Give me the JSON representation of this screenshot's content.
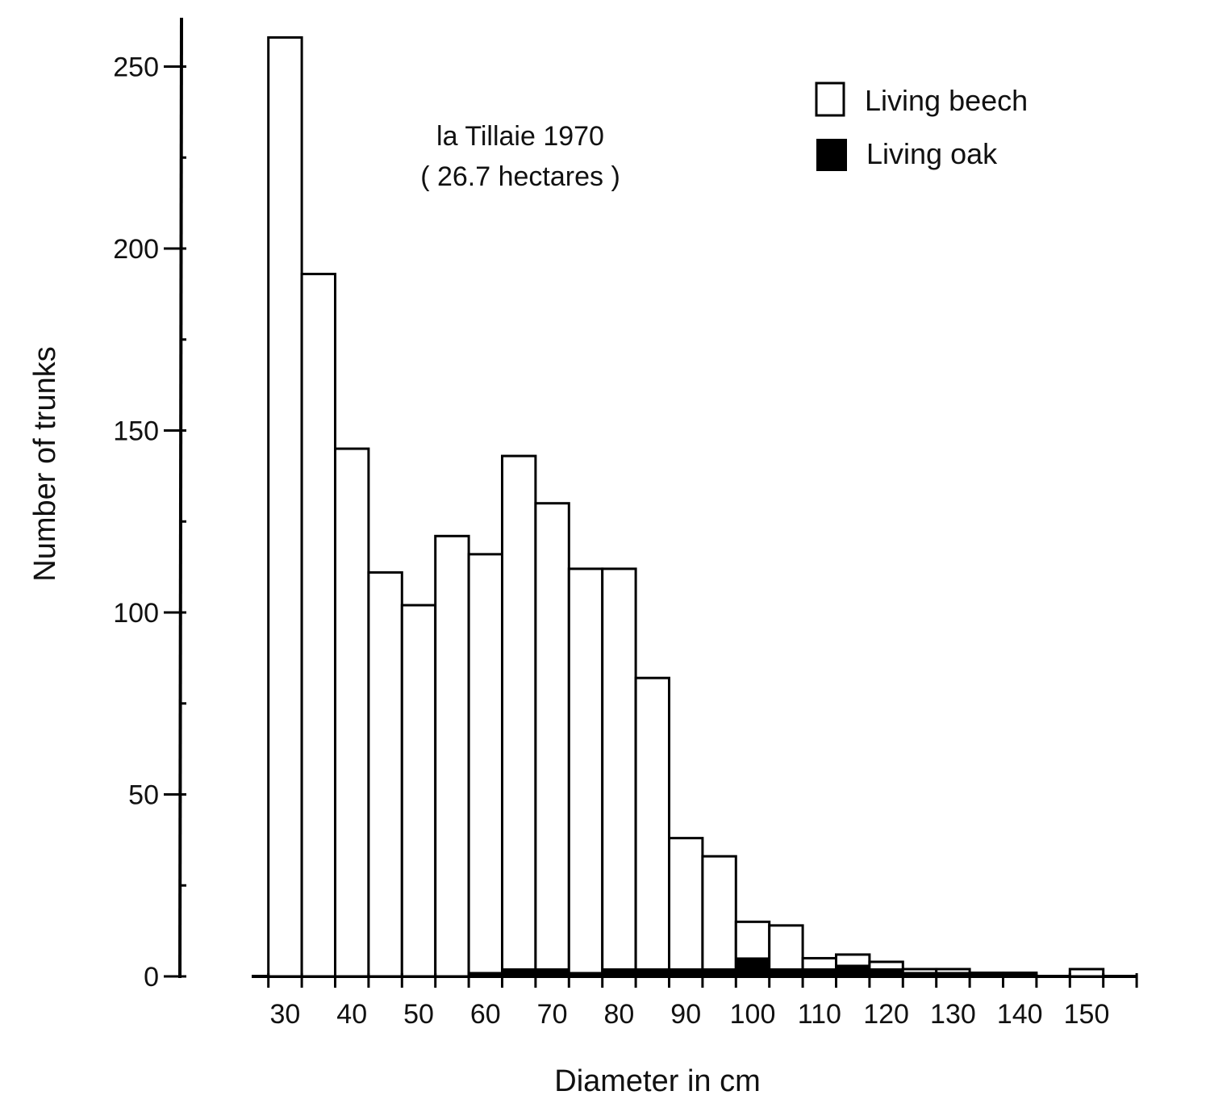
{
  "chart_data": {
    "type": "bar",
    "title": "",
    "annotation": [
      "la Tillaie 1970",
      "( 26.7 hectares )"
    ],
    "xlabel": "Diameter in cm",
    "ylabel": "Number of trunks",
    "bin_width": 5,
    "bin_starts": [
      27.5,
      32.5,
      37.5,
      42.5,
      47.5,
      52.5,
      57.5,
      62.5,
      67.5,
      72.5,
      77.5,
      82.5,
      87.5,
      92.5,
      97.5,
      102.5,
      107.5,
      112.5,
      117.5,
      122.5,
      127.5,
      132.5,
      137.5,
      142.5,
      147.5,
      152.5
    ],
    "xlim": [
      25,
      157.5
    ],
    "ylim": [
      0,
      260
    ],
    "x_ticks": [
      30,
      40,
      50,
      60,
      70,
      80,
      90,
      100,
      110,
      120,
      130,
      140,
      150
    ],
    "y_ticks": [
      0,
      50,
      100,
      150,
      200,
      250
    ],
    "series": [
      {
        "name": "Living beech",
        "color": "#ffffff",
        "values": [
          258,
          193,
          145,
          111,
          102,
          121,
          116,
          143,
          130,
          112,
          112,
          82,
          38,
          33,
          15,
          14,
          5,
          6,
          4,
          2,
          2,
          1,
          1,
          0,
          2,
          0
        ]
      },
      {
        "name": "Living oak",
        "color": "#000000",
        "values": [
          0,
          0,
          0,
          0,
          0,
          0,
          1,
          2,
          2,
          1,
          2,
          2,
          2,
          2,
          5,
          2,
          2,
          3,
          2,
          1,
          1,
          1,
          1,
          0,
          0,
          0
        ]
      }
    ],
    "legend_position": "top-right",
    "grid": false
  }
}
